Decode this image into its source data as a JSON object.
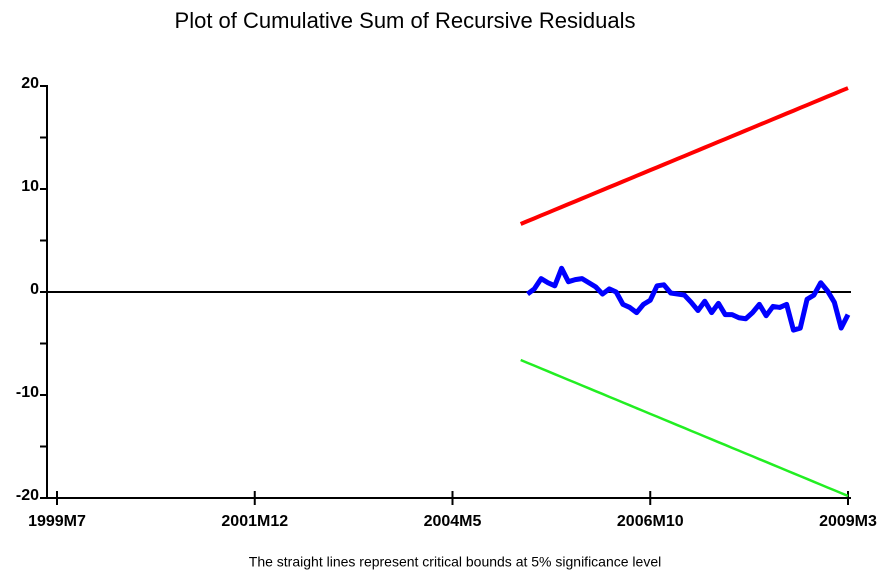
{
  "chart_data": {
    "type": "line",
    "title": "Plot of Cumulative Sum of Recursive Residuals",
    "note": "The straight lines represent critical bounds at 5% significance level",
    "categories": [
      "1999M7",
      null,
      null,
      null,
      null,
      null,
      null,
      null,
      null,
      null,
      null,
      null,
      null,
      null,
      null,
      null,
      null,
      null,
      null,
      null,
      null,
      null,
      null,
      null,
      null,
      null,
      null,
      null,
      null,
      "2001M12",
      null,
      null,
      null,
      null,
      null,
      null,
      null,
      null,
      null,
      null,
      null,
      null,
      null,
      null,
      null,
      null,
      null,
      null,
      null,
      null,
      null,
      null,
      null,
      null,
      null,
      null,
      null,
      null,
      "2004M5",
      null,
      null,
      null,
      null,
      null,
      null,
      null,
      null,
      null,
      null,
      null,
      null,
      null,
      null,
      null,
      null,
      null,
      null,
      null,
      null,
      null,
      null,
      null,
      null,
      null,
      null,
      null,
      null,
      "2006M10",
      null,
      null,
      null,
      null,
      null,
      null,
      null,
      null,
      null,
      null,
      null,
      null,
      null,
      null,
      null,
      null,
      null,
      null,
      null,
      null,
      null,
      null,
      null,
      null,
      null,
      null,
      null,
      null,
      "2009M3"
    ],
    "series": [
      {
        "color": "#ff0000",
        "width": 4,
        "values": [
          null,
          null,
          null,
          null,
          null,
          null,
          null,
          null,
          null,
          null,
          null,
          null,
          null,
          null,
          null,
          null,
          null,
          null,
          null,
          null,
          null,
          null,
          null,
          null,
          null,
          null,
          null,
          null,
          null,
          null,
          null,
          null,
          null,
          null,
          null,
          null,
          null,
          null,
          null,
          null,
          null,
          null,
          null,
          null,
          null,
          null,
          null,
          null,
          null,
          null,
          null,
          null,
          null,
          null,
          null,
          null,
          null,
          null,
          null,
          null,
          null,
          null,
          null,
          null,
          null,
          null,
          null,
          null,
          6.6,
          6.88,
          7.15,
          7.43,
          7.7,
          7.98,
          8.25,
          8.53,
          8.8,
          9.08,
          9.35,
          9.63,
          9.9,
          10.18,
          10.45,
          10.73,
          11.0,
          11.28,
          11.55,
          11.83,
          12.1,
          12.38,
          12.65,
          12.93,
          13.2,
          13.48,
          13.75,
          14.03,
          14.3,
          14.58,
          14.85,
          15.13,
          15.4,
          15.68,
          15.95,
          16.23,
          16.5,
          16.78,
          17.05,
          17.33,
          17.6,
          17.88,
          18.15,
          18.43,
          18.7,
          18.98,
          19.25,
          19.53,
          19.8
        ]
      },
      {
        "color": "#0000ff",
        "width": 5,
        "values": [
          null,
          null,
          null,
          null,
          null,
          null,
          null,
          null,
          null,
          null,
          null,
          null,
          null,
          null,
          null,
          null,
          null,
          null,
          null,
          null,
          null,
          null,
          null,
          null,
          null,
          null,
          null,
          null,
          null,
          null,
          null,
          null,
          null,
          null,
          null,
          null,
          null,
          null,
          null,
          null,
          null,
          null,
          null,
          null,
          null,
          null,
          null,
          null,
          null,
          null,
          null,
          null,
          null,
          null,
          null,
          null,
          null,
          null,
          null,
          null,
          null,
          null,
          null,
          null,
          null,
          null,
          null,
          null,
          null,
          -0.2,
          0.3,
          1.3,
          0.9,
          0.6,
          2.3,
          1.0,
          1.2,
          1.3,
          0.9,
          0.5,
          -0.2,
          0.3,
          0.0,
          -1.2,
          -1.5,
          -2.0,
          -1.2,
          -0.8,
          0.6,
          0.7,
          -0.1,
          -0.2,
          -0.3,
          -1.0,
          -1.8,
          -0.9,
          -2.0,
          -1.1,
          -2.2,
          -2.2,
          -2.5,
          -2.6,
          -2.0,
          -1.2,
          -2.3,
          -1.4,
          -1.5,
          -1.2,
          -3.7,
          -3.5,
          -0.7,
          -0.3,
          0.9,
          0.1,
          -1.0,
          -3.5,
          -2.2
        ]
      },
      {
        "color": "#22ee22",
        "width": 2.5,
        "values": [
          null,
          null,
          null,
          null,
          null,
          null,
          null,
          null,
          null,
          null,
          null,
          null,
          null,
          null,
          null,
          null,
          null,
          null,
          null,
          null,
          null,
          null,
          null,
          null,
          null,
          null,
          null,
          null,
          null,
          null,
          null,
          null,
          null,
          null,
          null,
          null,
          null,
          null,
          null,
          null,
          null,
          null,
          null,
          null,
          null,
          null,
          null,
          null,
          null,
          null,
          null,
          null,
          null,
          null,
          null,
          null,
          null,
          null,
          null,
          null,
          null,
          null,
          null,
          null,
          null,
          null,
          null,
          null,
          -6.6,
          -6.88,
          -7.15,
          -7.43,
          -7.7,
          -7.98,
          -8.25,
          -8.53,
          -8.8,
          -9.08,
          -9.35,
          -9.63,
          -9.9,
          -10.18,
          -10.45,
          -10.73,
          -11.0,
          -11.28,
          -11.55,
          -11.83,
          -12.1,
          -12.38,
          -12.65,
          -12.93,
          -13.2,
          -13.48,
          -13.75,
          -14.03,
          -14.3,
          -14.58,
          -14.85,
          -15.13,
          -15.4,
          -15.68,
          -15.95,
          -16.23,
          -16.5,
          -16.78,
          -17.05,
          -17.33,
          -17.6,
          -17.88,
          -18.15,
          -18.43,
          -18.7,
          -18.98,
          -19.25,
          -19.53,
          -19.8
        ]
      }
    ],
    "ylim": [
      -20,
      20
    ],
    "yticks": [
      -20,
      -10,
      0,
      10,
      20
    ],
    "yminorticks": [
      -15,
      -5,
      5,
      15
    ]
  }
}
